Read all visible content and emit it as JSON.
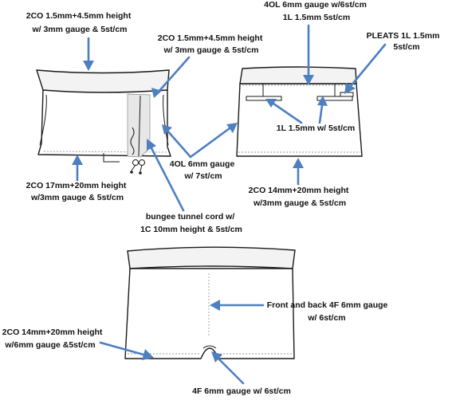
{
  "colors": {
    "arrow": "#4e7fbf",
    "outline": "#1a1a1a",
    "label": "#111111"
  },
  "callouts": {
    "front_waist_top": [
      "2CO 1.5mm+4.5mm height",
      "w/ 3mm gauge & 5st/cm"
    ],
    "front_waist_side": [
      "2CO 1.5mm+4.5mm height",
      "w/ 3mm gauge & 5st/cm"
    ],
    "front_hem": [
      "2CO 17mm+20mm height",
      "w/3mm gauge & 5st/cm"
    ],
    "overlock_seam": [
      "4OL 6mm gauge",
      "w/ 7st/cm"
    ],
    "tunnel_cord": [
      "bungee tunnel cord w/",
      "1C 10mm height & 5st/cm"
    ],
    "back_waist": [
      "4OL 6mm gauge w/6st/cm",
      "1L 1.5mm 5st/cm"
    ],
    "pleats": [
      "PLEATS 1L 1.5mm",
      "5st/cm"
    ],
    "back_pleat_topstitch": [
      "1L 1.5mm w/ 5st/cm"
    ],
    "back_hem": [
      "2CO 14mm+20mm height",
      "w/3mm gauge & 5st/cm"
    ],
    "short_center_seam": [
      "Front and back 4F 6mm gauge",
      "w/ 6st/cm"
    ],
    "short_hem": [
      "2CO 14mm+20mm height",
      "w/6mm gauge &5st/cm"
    ],
    "short_inseam": [
      "4F 6mm gauge w/ 6st/cm"
    ]
  }
}
